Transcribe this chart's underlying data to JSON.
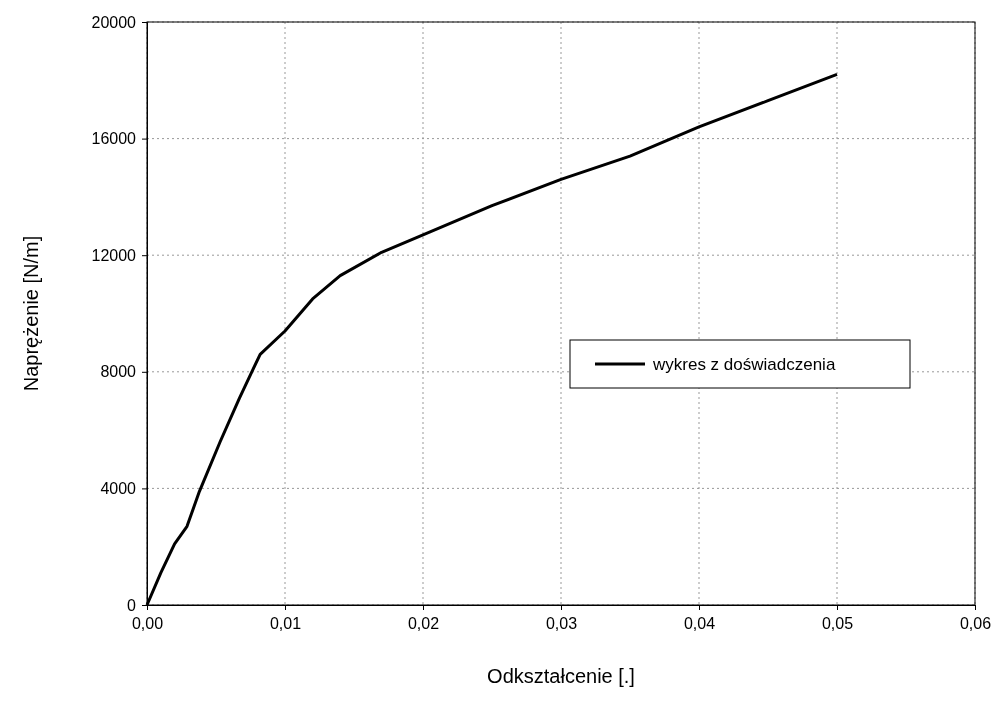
{
  "chart_data": {
    "type": "line",
    "xlabel": "Odkształcenie [.]",
    "ylabel": "Naprężenie [N/m]",
    "xlim": [
      0,
      0.06
    ],
    "xticks": [
      {
        "value": 0,
        "label": "0,00"
      },
      {
        "value": 0.01,
        "label": "0,01"
      },
      {
        "value": 0.02,
        "label": "0,02"
      },
      {
        "value": 0.03,
        "label": "0,03"
      },
      {
        "value": 0.04,
        "label": "0,04"
      },
      {
        "value": 0.05,
        "label": "0,05"
      },
      {
        "value": 0.06,
        "label": "0,06"
      }
    ],
    "ylim": [
      0,
      20000
    ],
    "yticks": [
      0,
      4000,
      8000,
      12000,
      16000,
      20000
    ],
    "grid": true,
    "legend": "right",
    "line_style": "solid",
    "marker": "none",
    "series": [
      {
        "name": "wykres z doświadczenia",
        "color": "#000000",
        "x": [
          0,
          0.001,
          0.002,
          0.0029,
          0.0038,
          0.0053,
          0.0067,
          0.0082,
          0.01,
          0.012,
          0.014,
          0.017,
          0.02,
          0.025,
          0.03,
          0.035,
          0.04,
          0.045,
          0.05
        ],
        "values": [
          0,
          1100,
          2100,
          2700,
          3900,
          5600,
          7100,
          8600,
          9400,
          10500,
          11300,
          12100,
          12700,
          13700,
          14600,
          15400,
          16400,
          17300,
          18200
        ]
      }
    ]
  }
}
